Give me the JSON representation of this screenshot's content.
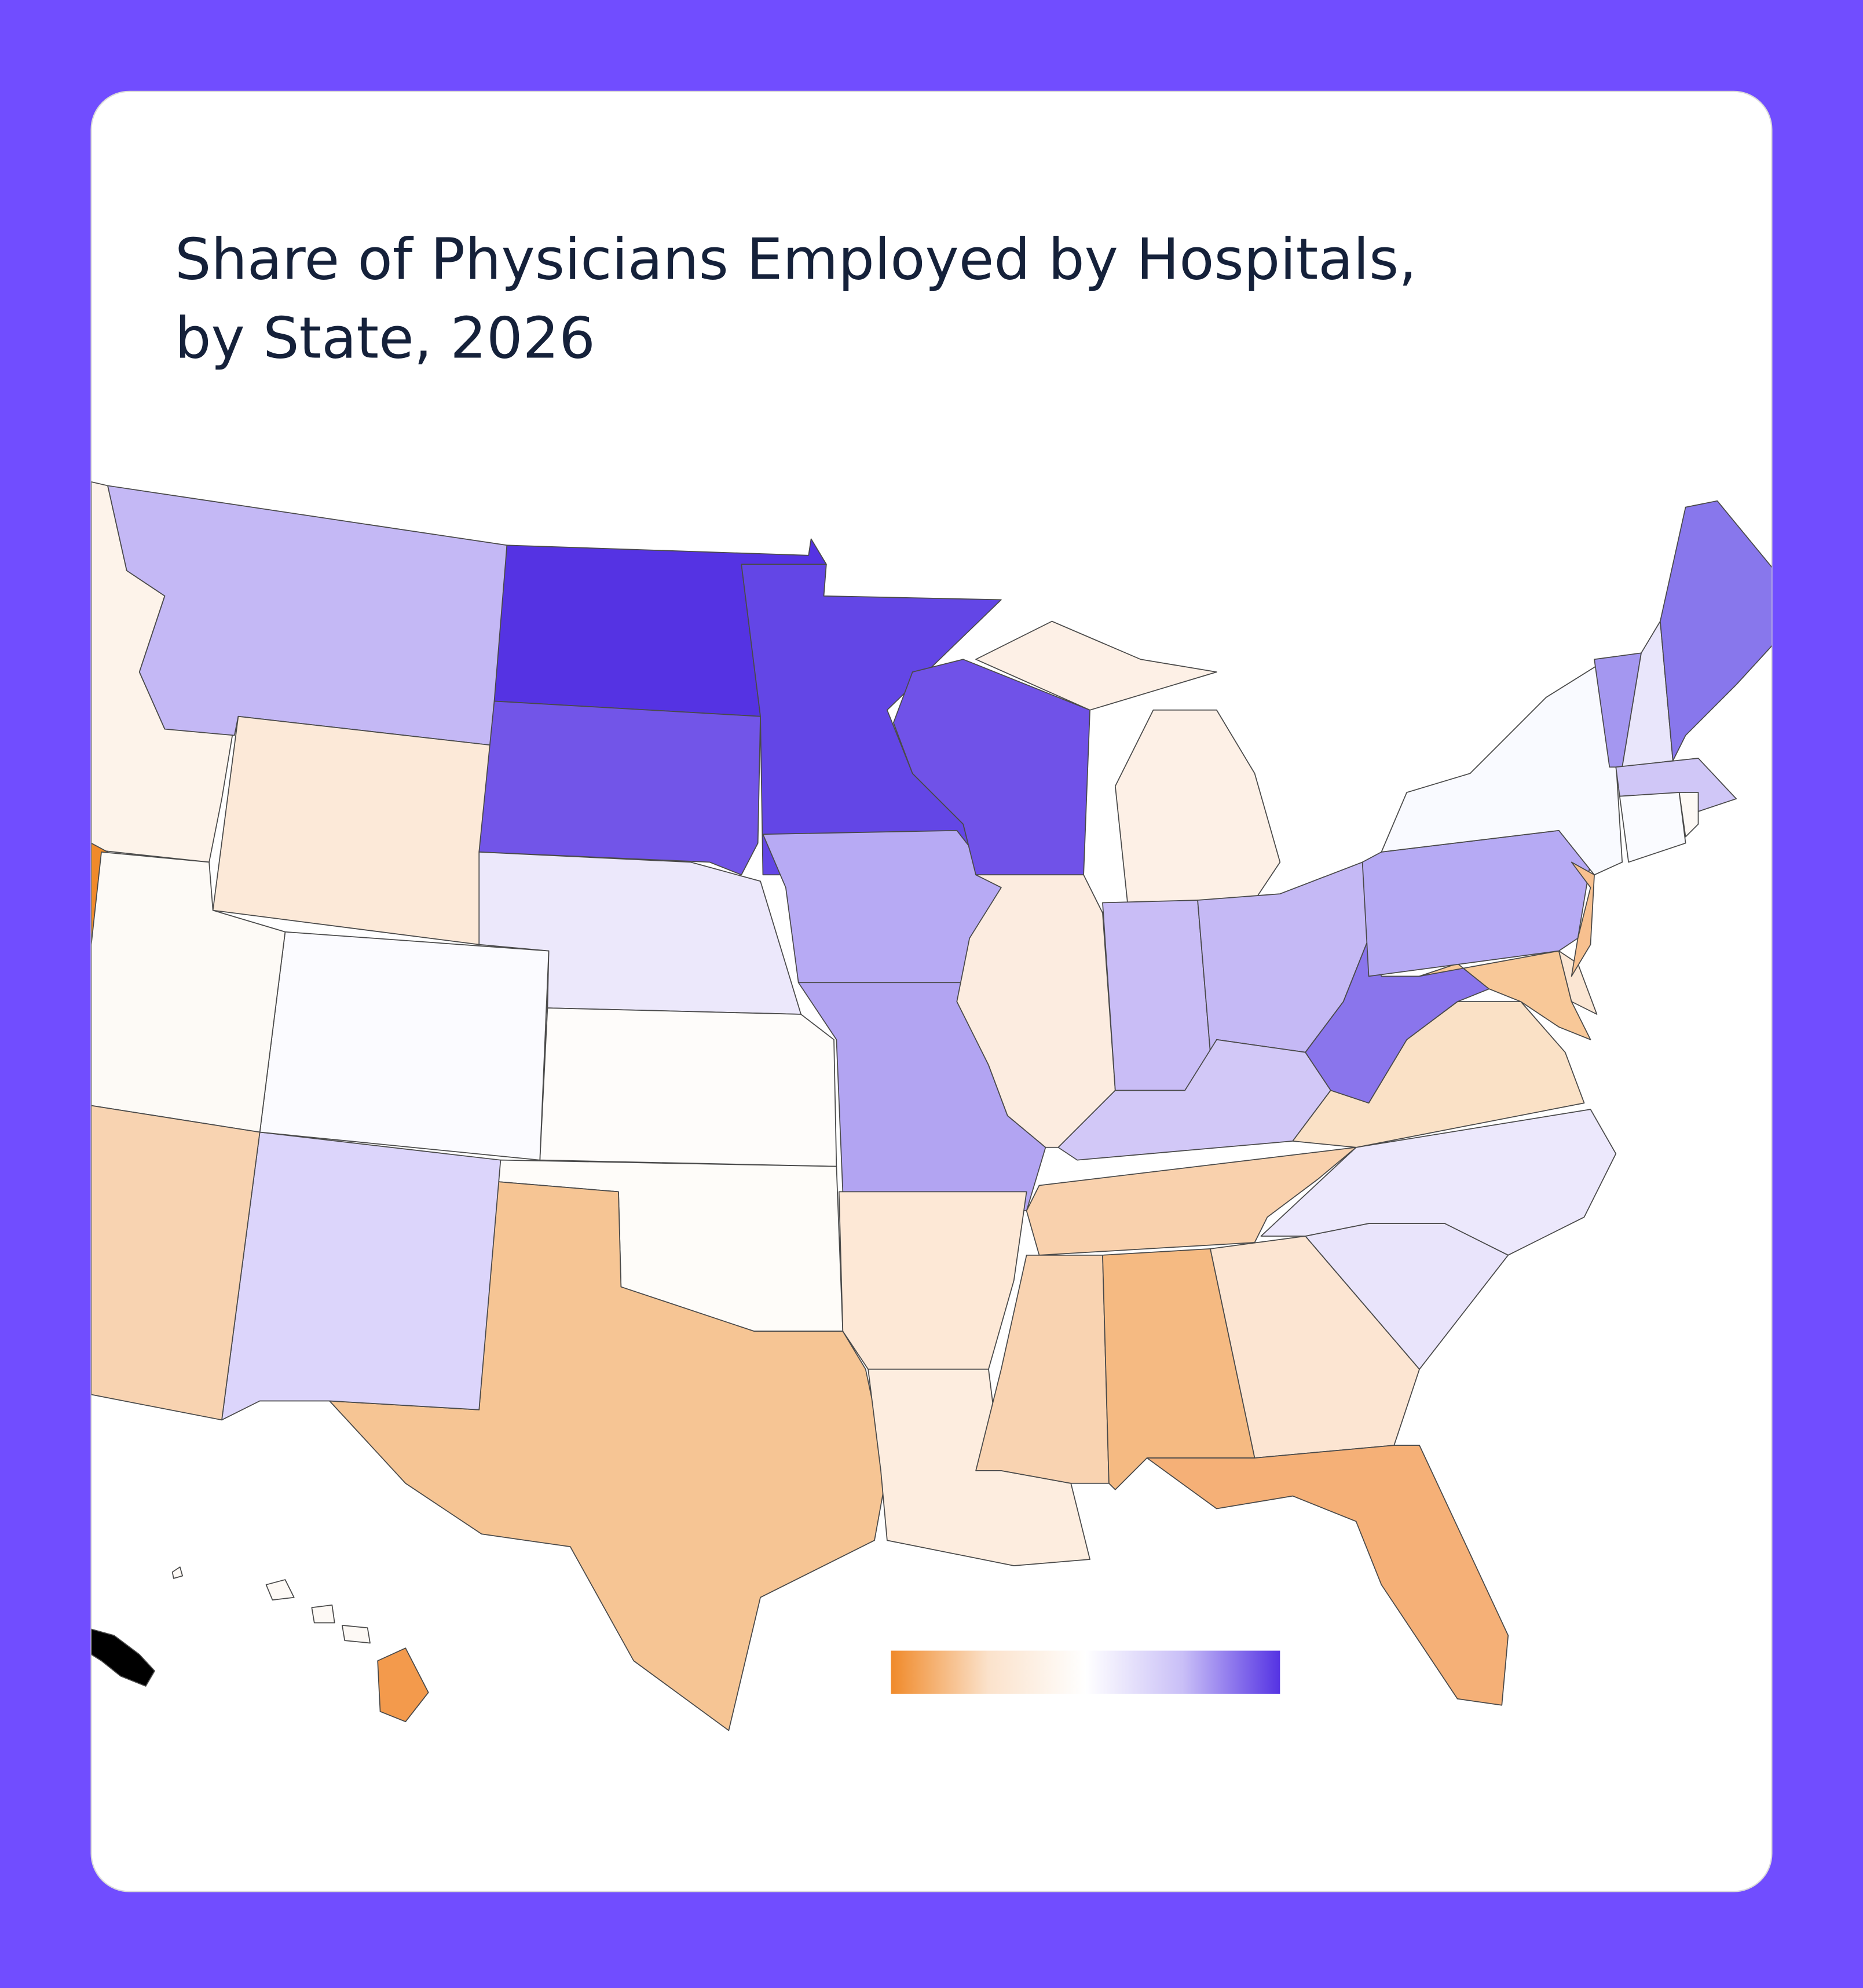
{
  "title": {
    "lines": [
      "Share of Physicians Employed by Hospitals,",
      "by State, 2026"
    ]
  },
  "map": {
    "state_colors": [
      "#fdf3ea",
      "#f08a2a",
      "#c4b8f5",
      "#fce9d8",
      "#5533e3",
      "#7255e8",
      "#ece8fb",
      "#fefcfa",
      "#fefcf9",
      "#f6c594",
      "#dcd5fb",
      "#fbfbff",
      "#fdfaf6",
      "#f8d3b1",
      "#6346e6",
      "#b7aaf4",
      "#b2a4f2",
      "#fde8d6",
      "#fdeddf",
      "#7052e8",
      "#fcece0",
      "#fdf0e6",
      "#fdf0e6",
      "#c9bdf6",
      "#c5b9f5",
      "#d2c8f7",
      "#f9d1ad",
      "#f9d3b1",
      "#f5ba82",
      "#fce5d2",
      "#f5b077",
      "#e9e4fb",
      "#ece8fc",
      "#fae1c6",
      "#8a75ec",
      "#f8c898",
      "#fbe6d3",
      "#b6aaf4",
      "#f7c08f",
      "#f9faff",
      "#a497f0",
      "#e9e6fb",
      "#8877ec",
      "#d0c7f7",
      "#fafbff",
      "#fdf9f5",
      "#fdf9f5",
      "#fdf9f5",
      "#fdf9f5",
      "#fdf9f5",
      "#f39a4c"
    ],
    "legend_gradient": [
      "#f08a2a",
      "#fbe2cb",
      "#ffffff",
      "#c9bff7",
      "#5533e3"
    ]
  }
}
